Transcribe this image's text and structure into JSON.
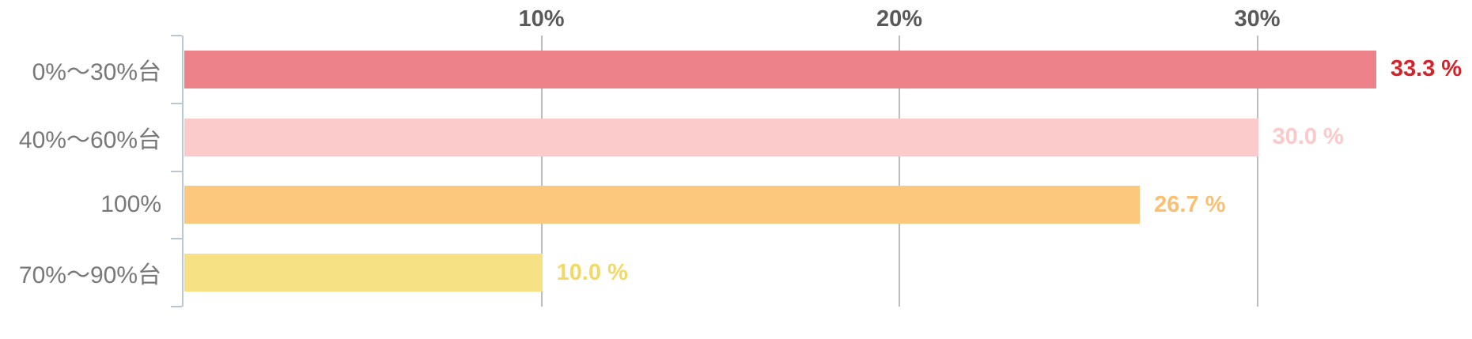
{
  "chart_data": {
    "type": "bar",
    "orientation": "horizontal",
    "title": "",
    "categories": [
      "0%〜30%台",
      "40%〜60%台",
      "100%",
      "70%〜90%台"
    ],
    "values": [
      33.3,
      30.0,
      26.7,
      10.0
    ],
    "value_labels": [
      "33.3 %",
      "30.0 %",
      "26.7 %",
      "10.0 %"
    ],
    "bar_colors": [
      "#ED828A",
      "#FBCACA",
      "#FCC87D",
      "#F6E284"
    ],
    "value_label_colors": [
      "#D2232A",
      "#FBC9C9",
      "#FBBF70",
      "#F3D964"
    ],
    "x_ticks": [
      {
        "value": 10,
        "label": "10%"
      },
      {
        "value": 20,
        "label": "20%"
      },
      {
        "value": 30,
        "label": "30%"
      }
    ],
    "xlim": [
      0,
      36
    ],
    "unit": "%",
    "grid": true,
    "legend": false
  },
  "style": {
    "grid_color": "#BDBDBD",
    "axis_color": "#B9C7D2",
    "tick_label_color": "#595959",
    "category_label_color": "#787878",
    "background": "#FFFFFF"
  }
}
